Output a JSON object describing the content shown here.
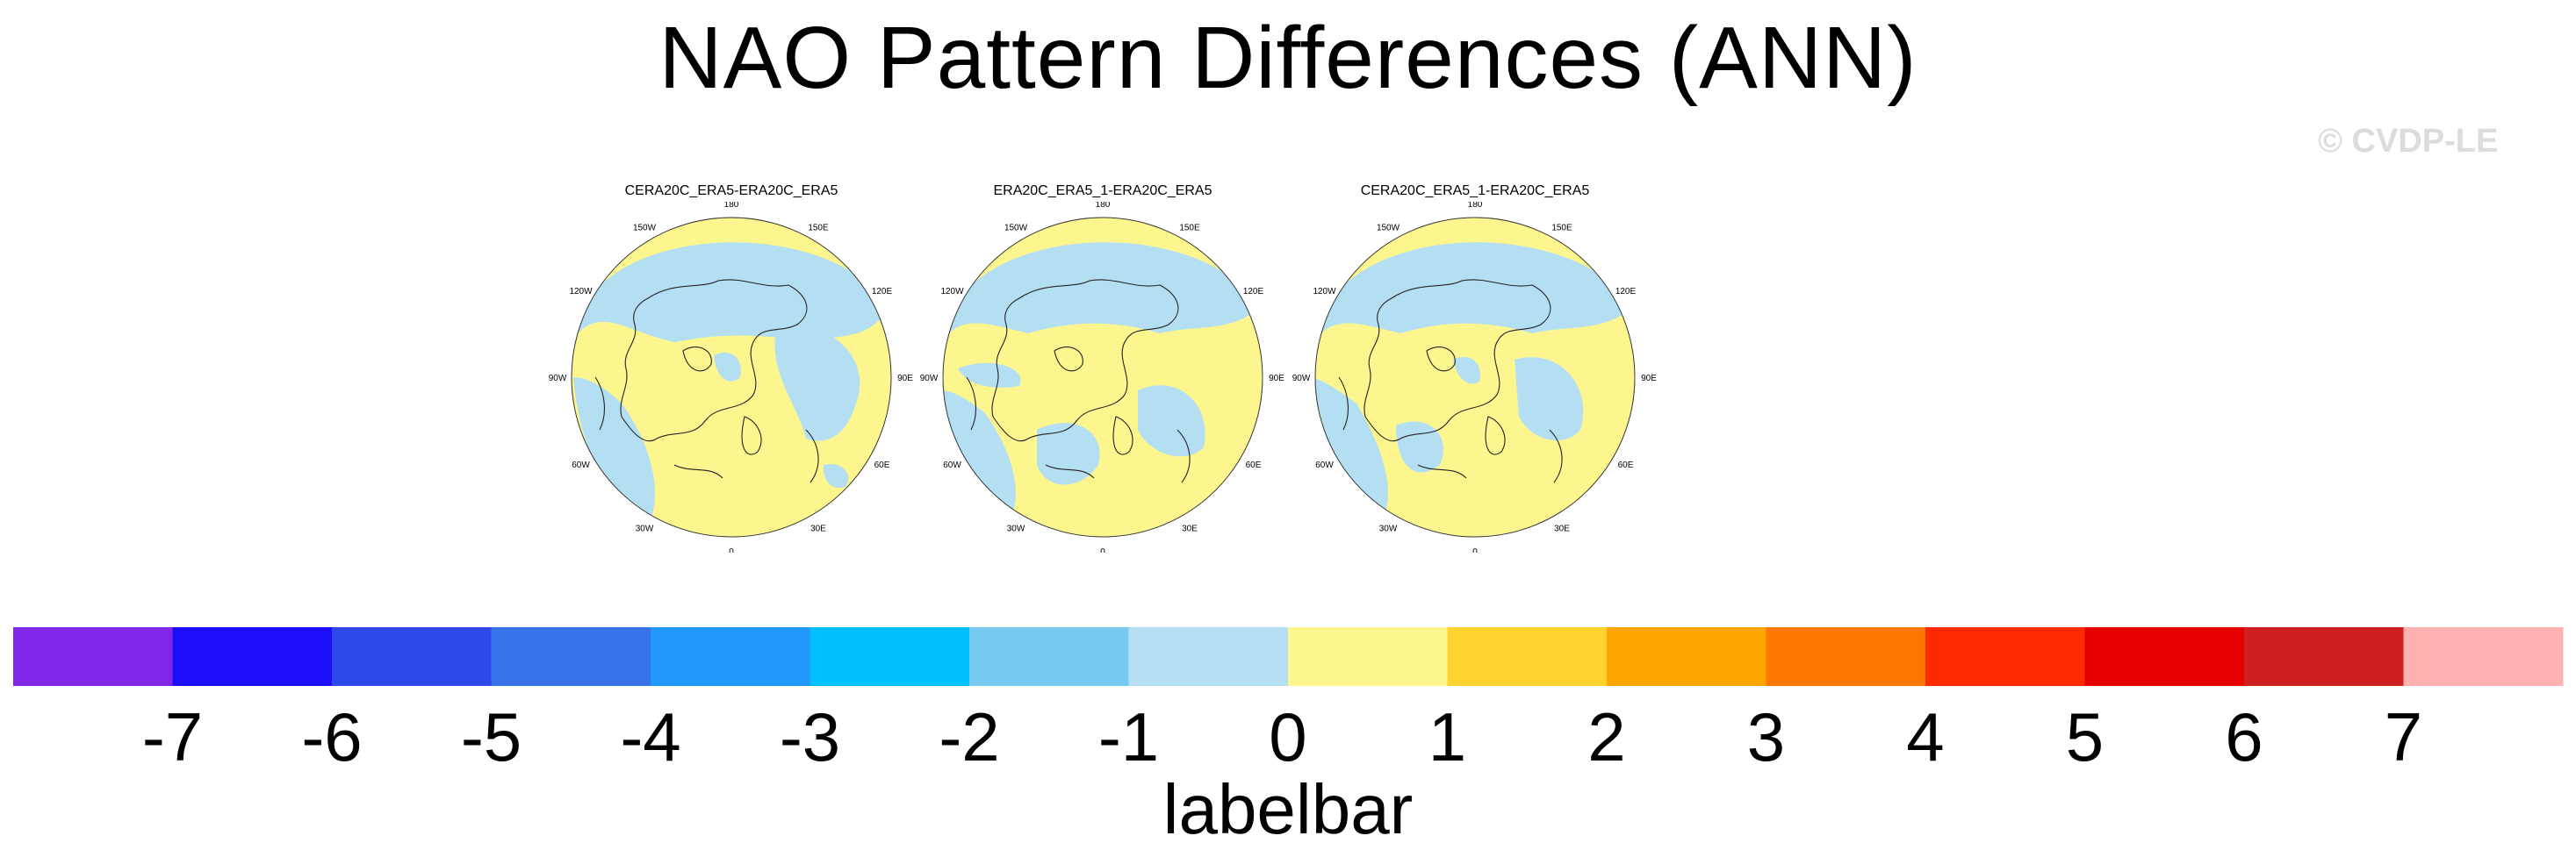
{
  "title": "NAO Pattern Differences (ANN)",
  "watermark": "© CVDP-LE",
  "panels": [
    {
      "title": "CERA20C_ERA5-ERA20C_ERA5"
    },
    {
      "title": "ERA20C_ERA5_1-ERA20C_ERA5"
    },
    {
      "title": "CERA20C_ERA5_1-ERA20C_ERA5"
    }
  ],
  "longitude_labels": [
    "180",
    "150E",
    "120E",
    "90E",
    "60E",
    "30E",
    "0",
    "30W",
    "60W",
    "90W",
    "120W",
    "150W"
  ],
  "colors": {
    "negative_fill": "#b4dff3",
    "positive_fill": "#fdf68f",
    "coast": "#222222"
  },
  "chart_data": {
    "type": "heatmap",
    "projection": "north-polar-stereographic",
    "title": "NAO Pattern Differences (ANN)",
    "legend_title": "labelbar",
    "colorbar": {
      "levels": [
        -7,
        -6,
        -5,
        -4,
        -3,
        -2,
        -1,
        0,
        1,
        2,
        3,
        4,
        5,
        6,
        7
      ],
      "tick_labels": [
        "-7",
        "-6",
        "-5",
        "-4",
        "-3",
        "-2",
        "-1",
        "0",
        "1",
        "2",
        "3",
        "4",
        "5",
        "6",
        "7"
      ],
      "colors": [
        "#8127ea",
        "#1c0ff8",
        "#2e48ec",
        "#3673e8",
        "#1f97fb",
        "#00c0fb",
        "#77c9f2",
        "#b4dff3",
        "#fdf68f",
        "#fed32f",
        "#fea500",
        "#fe7800",
        "#ff2b00",
        "#e60000",
        "#d01f20",
        "#ffb0b0"
      ]
    },
    "panels": [
      {
        "title": "CERA20C_ERA5-ERA20C_ERA5",
        "field_range": [
          -1,
          1
        ]
      },
      {
        "title": "ERA20C_ERA5_1-ERA20C_ERA5",
        "field_range": [
          -1,
          1
        ]
      },
      {
        "title": "CERA20C_ERA5_1-ERA20C_ERA5",
        "field_range": [
          -1,
          1
        ]
      }
    ]
  }
}
